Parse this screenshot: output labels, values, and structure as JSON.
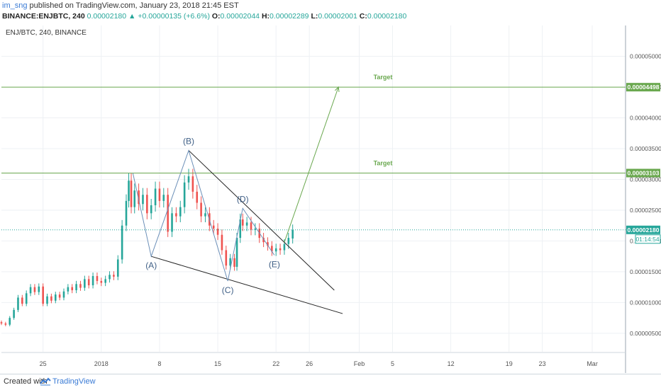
{
  "header": {
    "user": "im_sng",
    "published_text": "published on TradingView.com, January 23, 2018 21:45 EST",
    "symbol": "BINANCE:ENJBTC, 240",
    "last": "0.00002180",
    "change_arrow": "▲",
    "change": "+0.00000135 (+6.6%)",
    "o_label": "O:",
    "o": "0.00002044",
    "h_label": "H:",
    "h": "0.00002289",
    "l_label": "L:",
    "l": "0.00002001",
    "c_label": "C:",
    "c": "0.00002180"
  },
  "footer": {
    "created": "Created with",
    "brand": "TradingView"
  },
  "colors": {
    "up": "#26a69a",
    "down": "#ef5350",
    "pattern": "#6b8fb8",
    "target": "#6aa84f",
    "wedge": "#222222",
    "price_line": "#26a69a"
  },
  "chart_data": {
    "type": "candlestick",
    "title": "ENJ/BTC, 240, BINANCE",
    "ylim": [
      2e-07,
      5.5e-06
    ],
    "grid": true,
    "y_ticks": [
      "0.00005000",
      "0.00004500",
      "0.00004000",
      "0.00003500",
      "0.00003000",
      "0.00002500",
      "0.00002000",
      "0.00001500",
      "0.00001000",
      "0.00000500"
    ],
    "y_tick_values": [
      5e-06,
      4.5e-06,
      4e-06,
      3.5e-06,
      3e-06,
      2.5e-06,
      2e-06,
      1.5e-06,
      1e-06,
      5e-07
    ],
    "x_ticks": [
      "25",
      "2018",
      "8",
      "15",
      "22",
      "26",
      "Feb",
      "5",
      "12",
      "19",
      "23",
      "Mar"
    ],
    "x_tick_days": [
      -7,
      0,
      7,
      14,
      21,
      25,
      31,
      35,
      42,
      49,
      53,
      59
    ],
    "x_range_days": [
      -12,
      63
    ],
    "target_lines": [
      {
        "label": "Target",
        "value": 4.498e-06,
        "tag": "0.00004498"
      },
      {
        "label": "Target",
        "value": 3.103e-06,
        "tag": "0.00003103"
      }
    ],
    "current_price": {
      "value": 2.18e-06,
      "tag": "0.00002180",
      "countdown": "01:14:54"
    },
    "wave_points": [
      {
        "label": "",
        "day": 3.8,
        "value": 3.1e-06
      },
      {
        "label": "(A)",
        "day": 6.0,
        "value": 1.75e-06
      },
      {
        "label": "(B)",
        "day": 10.5,
        "value": 3.47e-06
      },
      {
        "label": "(C)",
        "day": 15.2,
        "value": 1.35e-06
      },
      {
        "label": "(D)",
        "day": 17.0,
        "value": 2.53e-06
      },
      {
        "label": "(E)",
        "day": 20.8,
        "value": 1.77e-06
      }
    ],
    "wedge_upper": [
      [
        10.5,
        3.47e-06
      ],
      [
        28.0,
        1.2e-06
      ]
    ],
    "wedge_lower": [
      [
        6.0,
        1.75e-06
      ],
      [
        29.0,
        8.2e-07
      ]
    ],
    "projection": [
      [
        22.0,
        1.98e-06
      ],
      [
        28.5,
        4.5e-06
      ]
    ],
    "candles": [
      [
        -12,
        6.8e-07,
        6.6e-07
      ],
      [
        -11.5,
        6.6e-07,
        6.4e-07
      ],
      [
        -11,
        6.4e-07,
        7.5e-07
      ],
      [
        -10.5,
        7.5e-07,
        8.8e-07
      ],
      [
        -10,
        8.8e-07,
        1.08e-06
      ],
      [
        -9.5,
        1.08e-06,
        9.8e-07
      ],
      [
        -9,
        9.8e-07,
        1.15e-06
      ],
      [
        -8.5,
        1.15e-06,
        1.25e-06
      ],
      [
        -8,
        1.25e-06,
        1.17e-06
      ],
      [
        -7.5,
        1.17e-06,
        1.26e-06
      ],
      [
        -7,
        1.26e-06,
        9.8e-07
      ],
      [
        -6.5,
        9.8e-07,
        1.1e-06
      ],
      [
        -6,
        1.1e-06,
        1.03e-06
      ],
      [
        -5.5,
        1.03e-06,
        1.13e-06
      ],
      [
        -5,
        1.13e-06,
        1.08e-06
      ],
      [
        -4.5,
        1.08e-06,
        1.18e-06
      ],
      [
        -4,
        1.18e-06,
        1.25e-06
      ],
      [
        -3.5,
        1.25e-06,
        1.2e-06
      ],
      [
        -3,
        1.2e-06,
        1.3e-06
      ],
      [
        -2.5,
        1.3e-06,
        1.24e-06
      ],
      [
        -2,
        1.24e-06,
        1.38e-06
      ],
      [
        -1.5,
        1.38e-06,
        1.28e-06
      ],
      [
        -1,
        1.28e-06,
        1.43e-06
      ],
      [
        -0.5,
        1.43e-06,
        1.35e-06
      ],
      [
        0,
        1.35e-06,
        1.32e-06
      ],
      [
        0.5,
        1.32e-06,
        1.38e-06
      ],
      [
        1,
        1.38e-06,
        1.45e-06
      ],
      [
        1.5,
        1.45e-06,
        1.42e-06
      ],
      [
        2,
        1.42e-06,
        1.7e-06
      ],
      [
        2.5,
        1.7e-06,
        2.25e-06
      ],
      [
        3,
        2.25e-06,
        2.65e-06
      ],
      [
        3.3,
        2.65e-06,
        2.98e-06
      ],
      [
        3.6,
        2.98e-06,
        2.55e-06
      ],
      [
        4,
        2.55e-06,
        2.82e-06
      ],
      [
        4.5,
        2.82e-06,
        2.6e-06
      ],
      [
        5,
        2.6e-06,
        2.75e-06
      ],
      [
        5.5,
        2.75e-06,
        2.45e-06
      ],
      [
        6,
        2.45e-06,
        2.58e-06
      ],
      [
        6.5,
        2.58e-06,
        2.85e-06
      ],
      [
        7,
        2.85e-06,
        2.65e-06
      ],
      [
        7.5,
        2.65e-06,
        2.75e-06
      ],
      [
        8,
        2.75e-06,
        2.15e-06
      ],
      [
        8.5,
        2.15e-06,
        2.45e-06
      ],
      [
        9,
        2.45e-06,
        2.4e-06
      ],
      [
        9.5,
        2.4e-06,
        2.55e-06
      ],
      [
        10,
        2.55e-06,
        2.95e-06
      ],
      [
        10.5,
        2.95e-06,
        3.05e-06
      ],
      [
        11,
        3.05e-06,
        2.8e-06
      ],
      [
        11.5,
        2.8e-06,
        2.62e-06
      ],
      [
        12,
        2.62e-06,
        2.4e-06
      ],
      [
        12.5,
        2.4e-06,
        2.45e-06
      ],
      [
        13,
        2.45e-06,
        2.25e-06
      ],
      [
        13.5,
        2.25e-06,
        2.2e-06
      ],
      [
        14,
        2.2e-06,
        2.1e-06
      ],
      [
        14.5,
        2.1e-06,
        1.85e-06
      ],
      [
        15,
        1.85e-06,
        1.6e-06
      ],
      [
        15.5,
        1.6e-06,
        1.72e-06
      ],
      [
        16,
        1.72e-06,
        1.58e-06
      ],
      [
        16.3,
        1.58e-06,
        2.05e-06
      ],
      [
        16.7,
        2.05e-06,
        2.35e-06
      ],
      [
        17,
        2.35e-06,
        2.25e-06
      ],
      [
        17.5,
        2.25e-06,
        2.3e-06
      ],
      [
        18,
        2.3e-06,
        2.18e-06
      ],
      [
        18.5,
        2.18e-06,
        2.2e-06
      ],
      [
        19,
        2.2e-06,
        2.05e-06
      ],
      [
        19.5,
        2.05e-06,
        1.98e-06
      ],
      [
        20,
        1.98e-06,
        1.92e-06
      ],
      [
        20.5,
        1.92e-06,
        1.83e-06
      ],
      [
        21,
        1.83e-06,
        1.88e-06
      ],
      [
        21.5,
        1.88e-06,
        1.85e-06
      ],
      [
        22,
        1.85e-06,
        1.95e-06
      ],
      [
        22.5,
        1.95e-06,
        2.05e-06
      ],
      [
        23,
        2.04e-06,
        2.18e-06
      ]
    ]
  }
}
